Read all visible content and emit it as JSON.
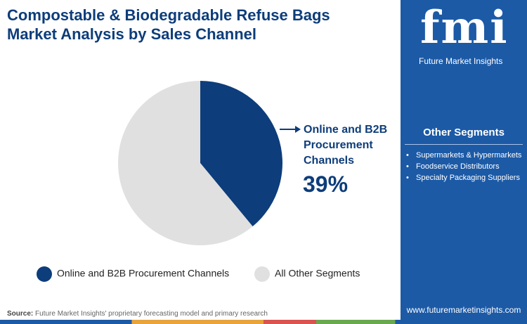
{
  "chart_data": {
    "type": "pie",
    "title": "Compostable & Biodegradable Refuse Bags Market Analysis by Sales Channel",
    "categories": [
      "Online and B2B Procurement Channels",
      "All Other Segments"
    ],
    "values": [
      39,
      61
    ],
    "value_labels": [
      "39%",
      null
    ],
    "colors": [
      "#0d3d7a",
      "#e0e0e0"
    ]
  },
  "brand": {
    "logo": "fmi",
    "name": "Future Market Insights",
    "website": "www.futuremarketinsights.com"
  },
  "sidebar": {
    "title": "Other Segments",
    "items": [
      "Supermarkets & Hypermarkets",
      "Foodservice Distributors",
      "Specialty Packaging Suppliers"
    ]
  },
  "source": {
    "label": "Source:",
    "text": "Future Market Insights' proprietary forecasting model and primary research"
  }
}
